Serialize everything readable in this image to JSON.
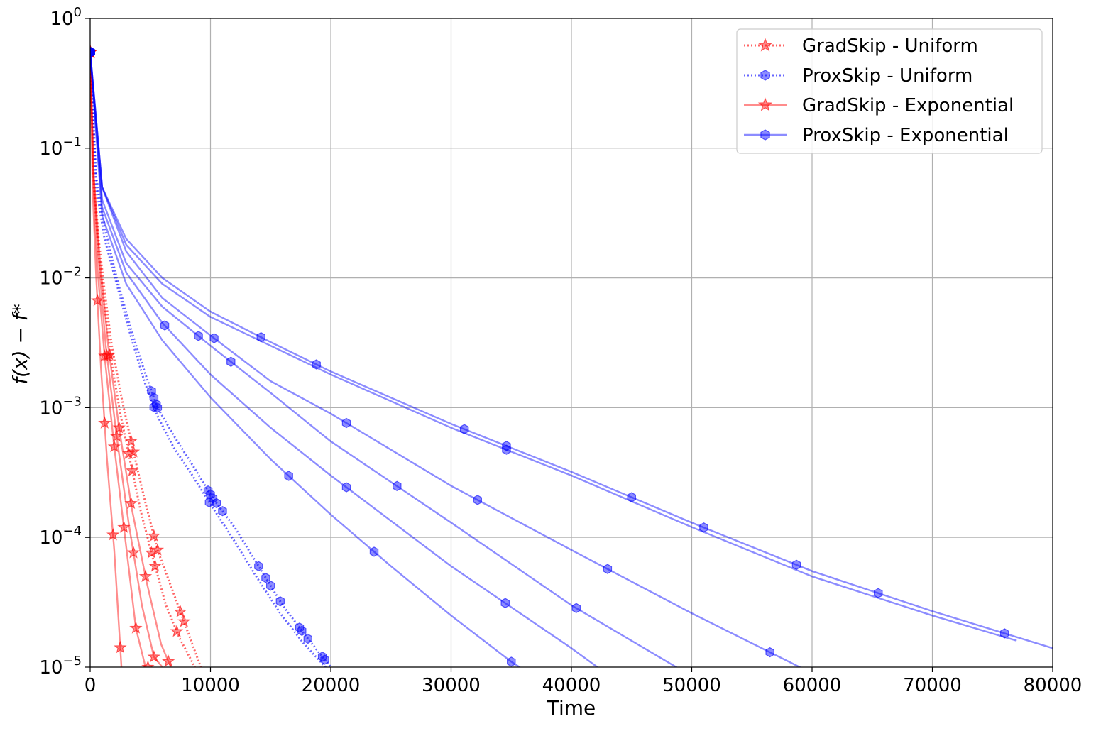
{
  "chart_data": {
    "type": "line",
    "xlabel": "Time",
    "ylabel": "f(x) − f*",
    "xscale": "linear",
    "yscale": "log",
    "xlim": [
      0,
      80000
    ],
    "ylim": [
      1e-05,
      1
    ],
    "x_ticks": [
      "0",
      "10000",
      "20000",
      "30000",
      "40000",
      "50000",
      "60000",
      "70000",
      "80000"
    ],
    "y_ticks": [
      {
        "base": "10",
        "exp": "0",
        "value": 1
      },
      {
        "base": "10",
        "exp": "−1",
        "value": 0.1
      },
      {
        "base": "10",
        "exp": "−2",
        "value": 0.01
      },
      {
        "base": "10",
        "exp": "−3",
        "value": 0.001
      },
      {
        "base": "10",
        "exp": "−4",
        "value": 0.0001
      },
      {
        "base": "10",
        "exp": "−5",
        "value": 1e-05
      }
    ],
    "grid": true,
    "legend_position": "top-right",
    "legend": [
      {
        "label": "GradSkip - Uniform",
        "color": "#ff0000",
        "style": "dotted",
        "marker": "star"
      },
      {
        "label": "ProxSkip - Uniform",
        "color": "#0000ff",
        "style": "dotted",
        "marker": "hexagon"
      },
      {
        "label": "GradSkip - Exponential",
        "color": "#ff0000",
        "style": "solid",
        "marker": "star"
      },
      {
        "label": "ProxSkip - Exponential",
        "color": "#0000ff",
        "style": "solid",
        "marker": "hexagon"
      }
    ],
    "series": [
      {
        "group": "GradSkip - Uniform",
        "color": "#ff0000",
        "style": "dotted",
        "marker": "star",
        "x": [
          0,
          300,
          700,
          1200,
          1800,
          2600,
          3500,
          4500,
          5600,
          6800,
          8000,
          9200
        ],
        "y": [
          0.55,
          0.06,
          0.02,
          0.008,
          0.003,
          0.0012,
          0.0005,
          0.0002,
          8e-05,
          4e-05,
          2e-05,
          1e-05
        ],
        "markers_x": [
          3400,
          3600,
          5300,
          5600,
          7500,
          7800
        ]
      },
      {
        "group": "GradSkip - Uniform",
        "color": "#ff0000",
        "style": "dotted",
        "marker": "star",
        "x": [
          0,
          300,
          700,
          1200,
          1800,
          2500,
          3300,
          4200,
          5200,
          6300,
          7400,
          8700
        ],
        "y": [
          0.55,
          0.05,
          0.015,
          0.006,
          0.0022,
          0.0009,
          0.0004,
          0.00016,
          7e-05,
          3e-05,
          1.7e-05,
          1e-05
        ],
        "markers_x": [
          3200,
          3500,
          5100,
          5400,
          7200
        ]
      },
      {
        "group": "ProxSkip - Uniform",
        "color": "#0000ff",
        "style": "dotted",
        "marker": "hexagon",
        "x": [
          0,
          500,
          1200,
          2200,
          3400,
          4600,
          5600,
          7000,
          8600,
          10200,
          12000,
          14000,
          16000,
          18000,
          20000
        ],
        "y": [
          0.55,
          0.06,
          0.025,
          0.01,
          0.004,
          0.0018,
          0.001,
          0.0006,
          0.00035,
          0.0002,
          0.00012,
          6e-05,
          3e-05,
          1.7e-05,
          1e-05
        ],
        "markers_x": [
          5100,
          5300,
          5500,
          5600,
          9800,
          10000,
          10200,
          10500,
          11000,
          14000,
          14600,
          15000,
          15800,
          17400,
          17600,
          18100,
          19300,
          19500
        ]
      },
      {
        "group": "ProxSkip - Uniform",
        "color": "#0000ff",
        "style": "dotted",
        "marker": "hexagon",
        "x": [
          0,
          500,
          1200,
          2200,
          3400,
          4500,
          5500,
          6900,
          8500,
          10000,
          11800,
          13800,
          15800,
          17800,
          19800
        ],
        "y": [
          0.55,
          0.05,
          0.02,
          0.009,
          0.0035,
          0.0016,
          0.0009,
          0.0005,
          0.0003,
          0.00018,
          0.0001,
          5e-05,
          2.6e-05,
          1.5e-05,
          9.5e-06
        ],
        "markers_x": [
          5300,
          9900
        ]
      },
      {
        "group": "GradSkip - Exponential",
        "color": "#ff0000",
        "style": "solid",
        "marker": "star",
        "x": [
          0,
          200,
          500,
          900,
          1400,
          2000,
          2600
        ],
        "y": [
          0.55,
          0.05,
          0.01,
          0.002,
          0.0004,
          8e-05,
          1e-05
        ],
        "markers_x": [
          600,
          1200,
          1900,
          2500
        ]
      },
      {
        "group": "GradSkip - Exponential",
        "color": "#ff0000",
        "style": "solid",
        "marker": "star",
        "x": [
          0,
          250,
          600,
          1200,
          2000,
          2900,
          3800,
          4600
        ],
        "y": [
          0.55,
          0.06,
          0.012,
          0.0025,
          0.0005,
          0.0001,
          2e-05,
          1e-05
        ],
        "markers_x": [
          1200,
          2000,
          2800,
          3800,
          4800
        ]
      },
      {
        "group": "GradSkip - Exponential",
        "color": "#ff0000",
        "style": "solid",
        "marker": "star",
        "x": [
          0,
          300,
          700,
          1300,
          2200,
          3200,
          4300,
          5300,
          6000
        ],
        "y": [
          0.55,
          0.06,
          0.014,
          0.003,
          0.0006,
          0.00013,
          3e-05,
          1.2e-05,
          1e-05
        ],
        "markers_x": [
          1400,
          2200,
          3600,
          5300
        ]
      },
      {
        "group": "GradSkip - Exponential",
        "color": "#ff0000",
        "style": "solid",
        "marker": "star",
        "x": [
          0,
          300,
          800,
          1500,
          2400,
          3500,
          4700,
          5900,
          6700
        ],
        "y": [
          0.55,
          0.06,
          0.014,
          0.003,
          0.0007,
          0.00016,
          4.5e-05,
          1.5e-05,
          1e-05
        ],
        "markers_x": [
          1600,
          2400,
          3400,
          4600,
          6500
        ]
      },
      {
        "group": "ProxSkip - Exponential",
        "color": "#0000ff",
        "style": "solid",
        "marker": "hexagon",
        "x": [
          0,
          1000,
          3000,
          6000,
          10000,
          15000,
          20000,
          30000,
          40000,
          50000,
          60000,
          70000,
          80000
        ],
        "y": [
          0.55,
          0.05,
          0.02,
          0.01,
          0.0055,
          0.0032,
          0.0019,
          0.00075,
          0.00032,
          0.00013,
          5.5e-05,
          2.7e-05,
          1.4e-05
        ],
        "markers_x": [
          14200,
          18800,
          31100,
          34600,
          45000,
          51000,
          58700,
          65500,
          76000
        ]
      },
      {
        "group": "ProxSkip - Exponential",
        "color": "#0000ff",
        "style": "solid",
        "marker": "hexagon",
        "x": [
          0,
          1000,
          3000,
          6000,
          10000,
          15000,
          20000,
          30000,
          40000,
          50000,
          60000,
          70000,
          77000
        ],
        "y": [
          0.55,
          0.05,
          0.018,
          0.009,
          0.005,
          0.003,
          0.0018,
          0.0007,
          0.0003,
          0.00012,
          5e-05,
          2.5e-05,
          1.6e-05
        ],
        "markers_x": [
          34600
        ]
      },
      {
        "group": "ProxSkip - Exponential",
        "color": "#0000ff",
        "style": "solid",
        "marker": "hexagon",
        "x": [
          0,
          1000,
          3000,
          6000,
          10000,
          15000,
          20000,
          30000,
          40000,
          50000,
          60500
        ],
        "y": [
          0.55,
          0.05,
          0.016,
          0.007,
          0.0036,
          0.0016,
          0.0009,
          0.00025,
          8e-05,
          2.6e-05,
          8.5e-06
        ],
        "markers_x": [
          10300,
          21300,
          32200,
          43000,
          56500
        ]
      },
      {
        "group": "ProxSkip - Exponential",
        "color": "#0000ff",
        "style": "solid",
        "marker": "hexagon",
        "x": [
          0,
          1000,
          3000,
          6000,
          10000,
          15000,
          20000,
          30000,
          40000,
          50000,
          55000
        ],
        "y": [
          0.55,
          0.04,
          0.013,
          0.006,
          0.003,
          0.0013,
          0.00055,
          0.00013,
          3e-05,
          8.5e-06,
          4.5e-06
        ],
        "markers_x": [
          9000,
          11700,
          25500,
          40400,
          49500
        ]
      },
      {
        "group": "ProxSkip - Exponential",
        "color": "#0000ff",
        "style": "solid",
        "marker": "hexagon",
        "x": [
          0,
          1000,
          3000,
          6000,
          10000,
          15000,
          20000,
          30000,
          40000,
          46000
        ],
        "y": [
          0.55,
          0.035,
          0.011,
          0.0045,
          0.0018,
          0.0007,
          0.0003,
          6e-05,
          1.4e-05,
          5.5e-06
        ],
        "markers_x": [
          6200,
          21300,
          34500,
          47500
        ]
      },
      {
        "group": "ProxSkip - Exponential",
        "color": "#0000ff",
        "style": "solid",
        "marker": "hexagon",
        "x": [
          0,
          1000,
          3000,
          6000,
          10000,
          15000,
          20000,
          25000,
          30000,
          35000,
          40000
        ],
        "y": [
          0.55,
          0.03,
          0.009,
          0.0033,
          0.0012,
          0.0004,
          0.00015,
          6e-05,
          2.5e-05,
          1.1e-05,
          5.5e-06
        ],
        "markers_x": [
          16500,
          23600,
          35000
        ]
      }
    ]
  }
}
